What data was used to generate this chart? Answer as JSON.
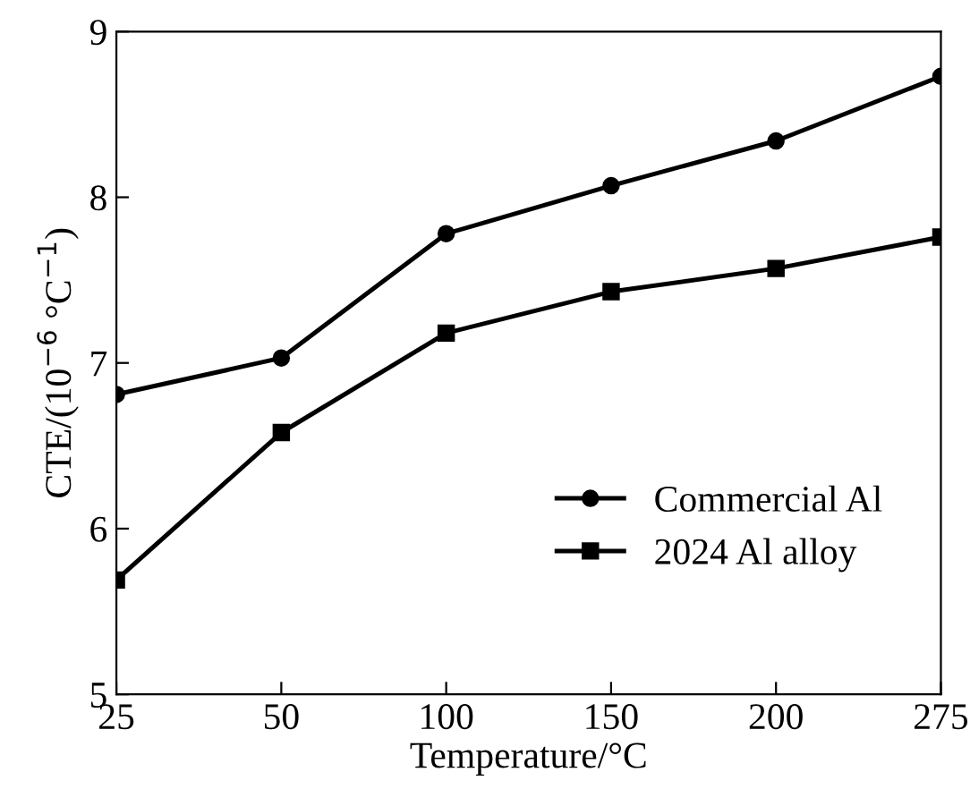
{
  "chart_data": {
    "type": "line",
    "xlabel": "Temperature/°C",
    "ylabel": "CTE/(10$^{−6}$ °C$^{−1}$)",
    "categories": [
      "25",
      "50",
      "100",
      "150",
      "200",
      "275"
    ],
    "series": [
      {
        "name": "Commercial Al",
        "color": "#000000",
        "marker": "circle",
        "values": [
          6.81,
          7.03,
          7.78,
          8.07,
          8.34,
          8.73
        ]
      },
      {
        "name": "2024 Al alloy",
        "color": "#000000",
        "marker": "square",
        "values": [
          5.69,
          6.58,
          7.18,
          7.43,
          7.57,
          7.76
        ]
      }
    ],
    "ylim": [
      5,
      9
    ],
    "yticks": [
      5,
      6,
      7,
      8,
      9
    ],
    "grid": false,
    "legend": "right",
    "line_style": "solid"
  }
}
